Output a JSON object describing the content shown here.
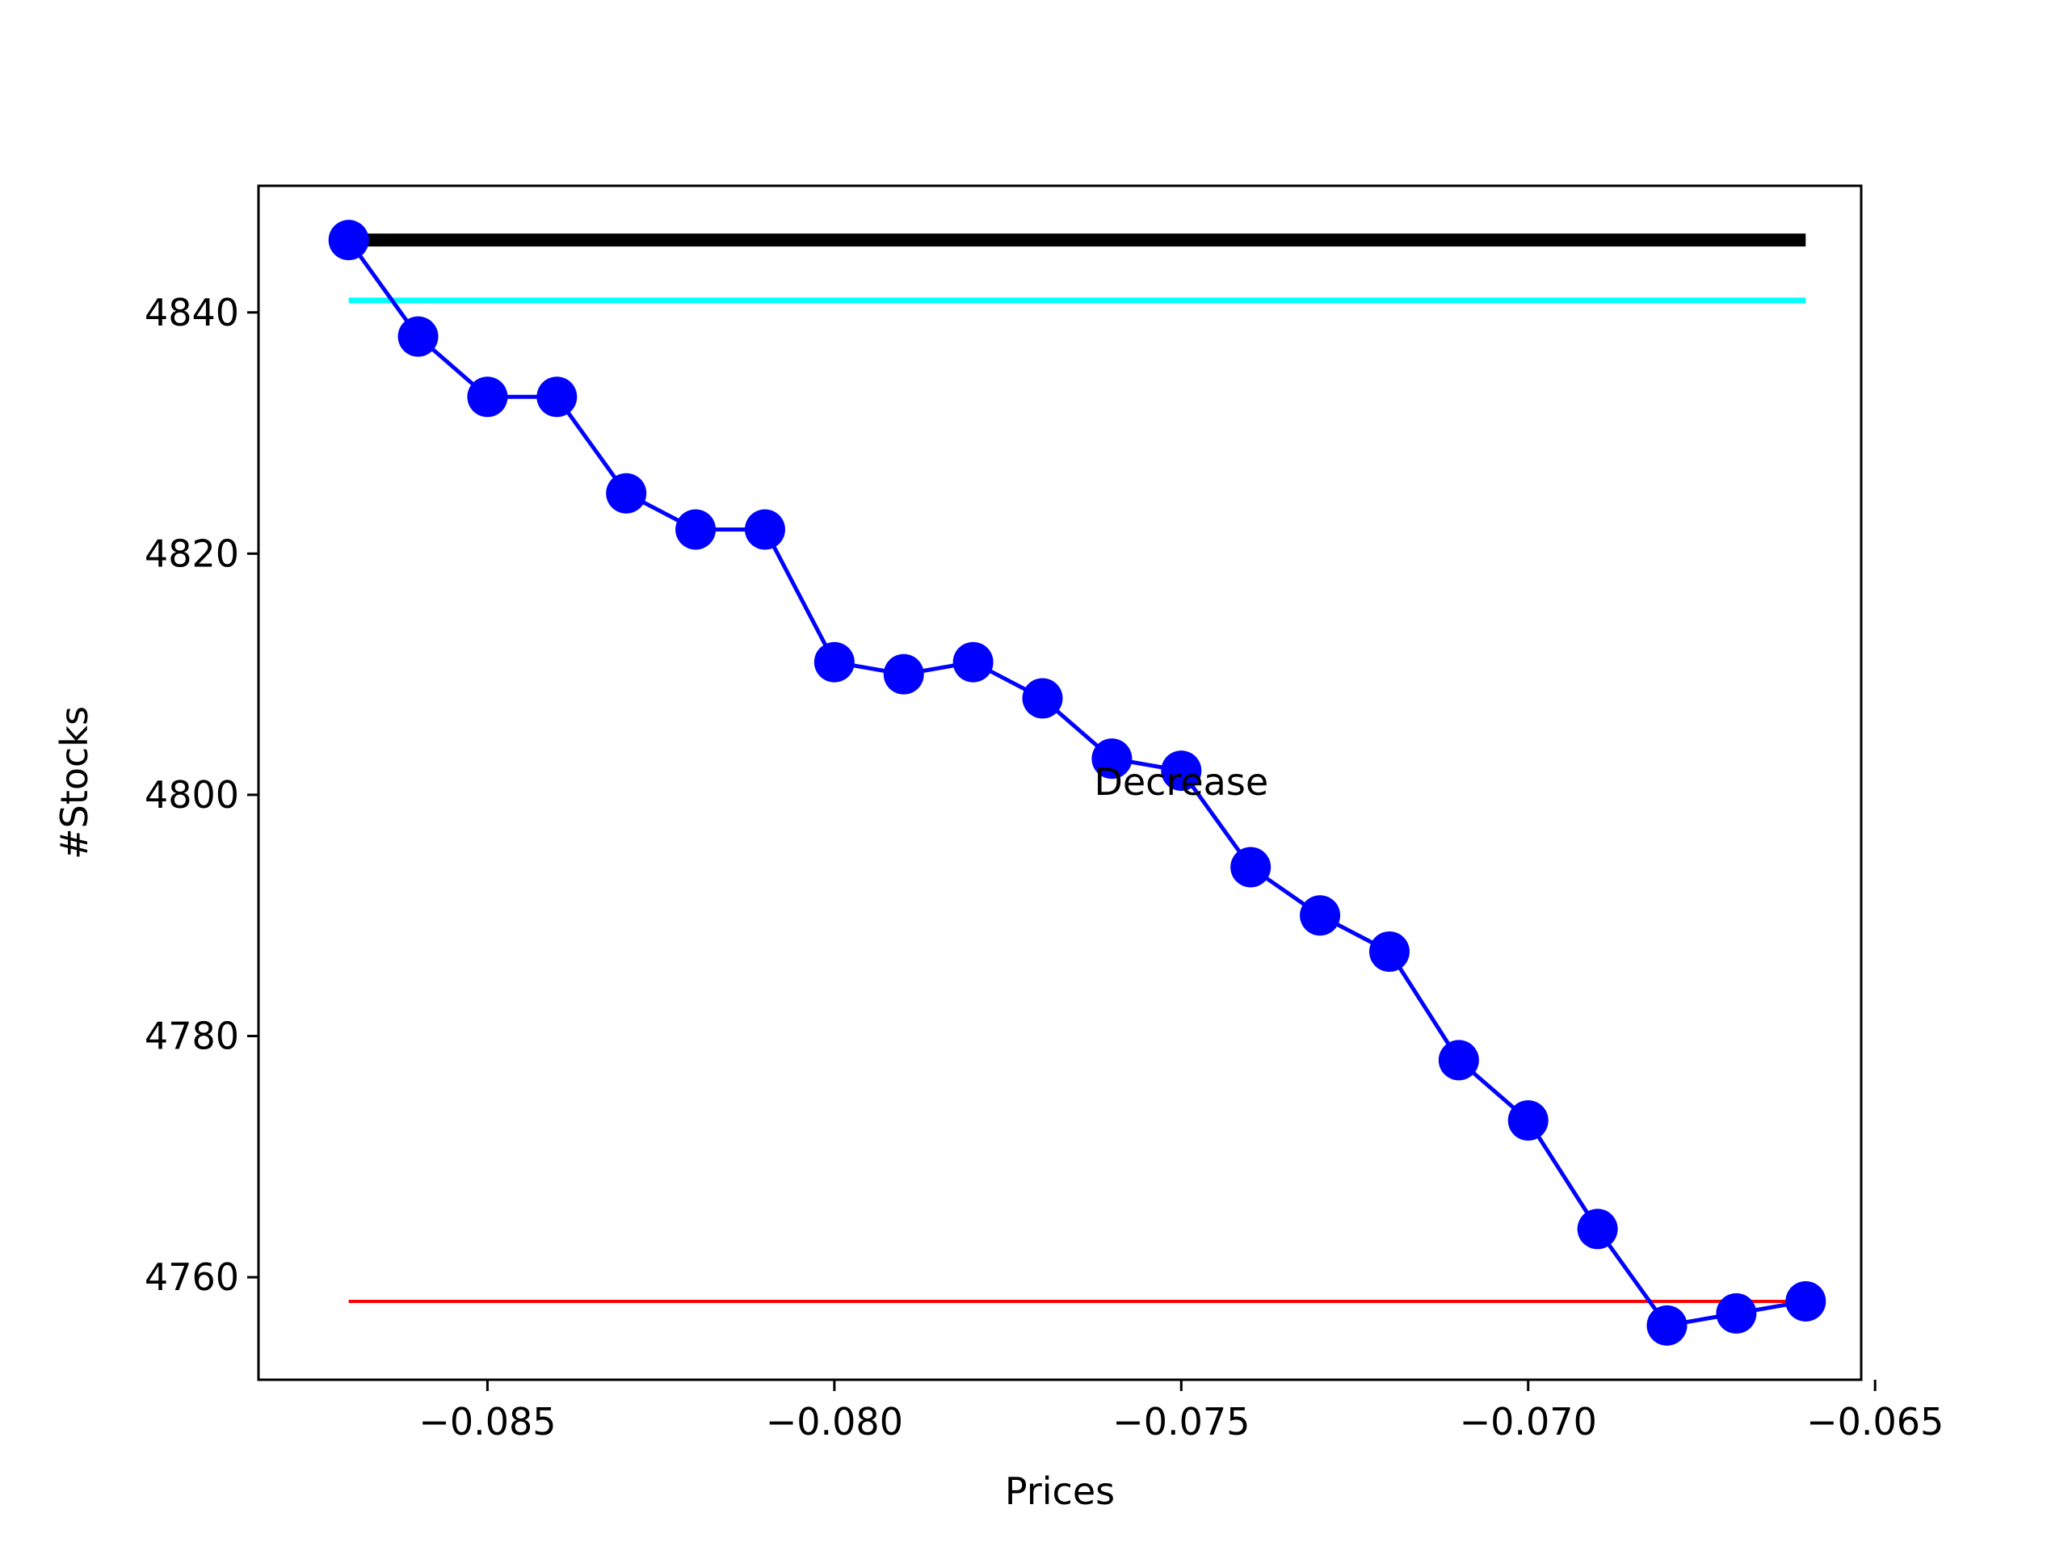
{
  "chart_data": {
    "type": "line",
    "title": "",
    "xlabel": "Prices",
    "ylabel": "#Stocks",
    "xlim": [
      -0.0883,
      -0.0652
    ],
    "ylim": [
      4751.5,
      4850.5
    ],
    "grid": false,
    "x_ticks": [
      -0.085,
      -0.08,
      -0.075,
      -0.07,
      -0.065
    ],
    "x_tick_labels": [
      "−0.085",
      "−0.080",
      "−0.075",
      "−0.070",
      "−0.065"
    ],
    "y_ticks": [
      4760,
      4780,
      4800,
      4820,
      4840
    ],
    "y_tick_labels": [
      "4760",
      "4780",
      "4800",
      "4820",
      "4840"
    ],
    "series": [
      {
        "color": "#0000ff",
        "marker": "circle",
        "x": [
          -0.087,
          -0.086,
          -0.085,
          -0.084,
          -0.083,
          -0.082,
          -0.081,
          -0.08,
          -0.079,
          -0.078,
          -0.077,
          -0.076,
          -0.075,
          -0.074,
          -0.073,
          -0.072,
          -0.071,
          -0.07,
          -0.069,
          -0.068,
          -0.067,
          -0.066
        ],
        "y": [
          4846,
          4838,
          4833,
          4833,
          4825,
          4822,
          4822,
          4811,
          4810,
          4811,
          4808,
          4803,
          4802,
          4794,
          4790,
          4787,
          4778,
          4773,
          4764,
          4756,
          4757,
          4758
        ]
      }
    ],
    "reference_lines": [
      {
        "y": 4846,
        "x_from": -0.087,
        "x_to": -0.066,
        "color": "#000000",
        "weight": "thick"
      },
      {
        "y": 4841,
        "x_from": -0.087,
        "x_to": -0.066,
        "color": "#00ffff",
        "weight": "medium"
      },
      {
        "y": 4758,
        "x_from": -0.087,
        "x_to": -0.066,
        "color": "#ff0000",
        "weight": "thin"
      }
    ],
    "annotations": [
      {
        "text": "Decrease",
        "x": -0.075,
        "y": 4801
      }
    ]
  }
}
